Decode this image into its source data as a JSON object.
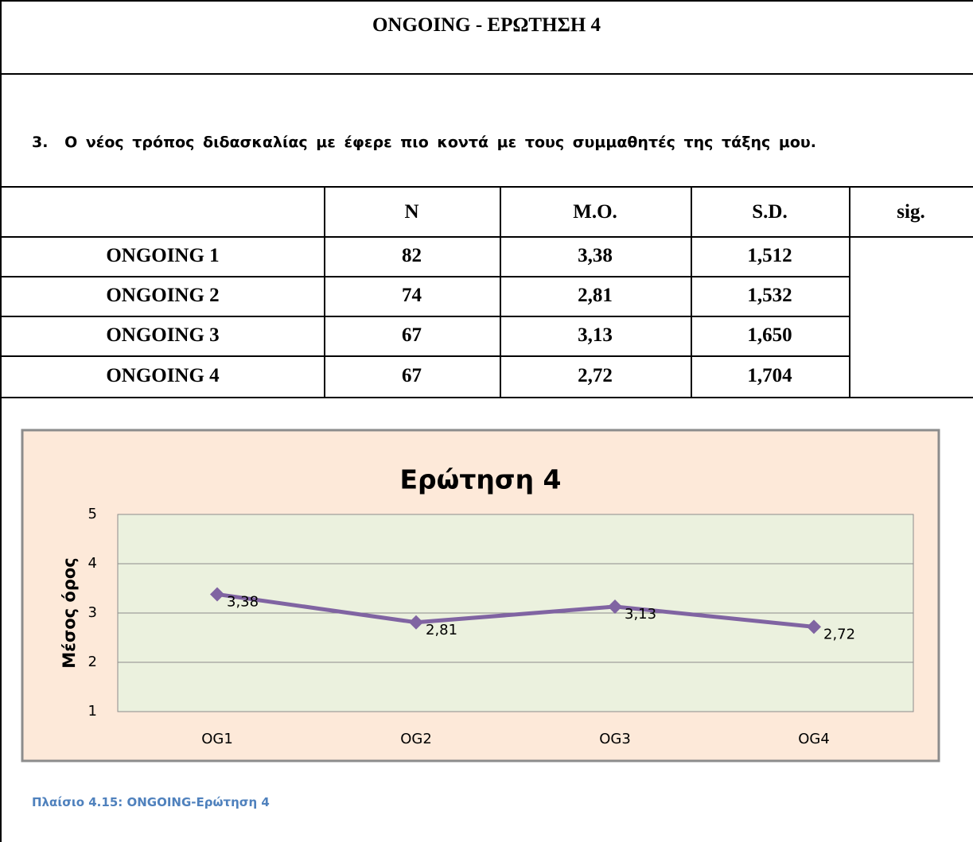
{
  "header": {
    "title": "ONGOING - ΕΡΩΤΗΣΗ 4"
  },
  "question": {
    "number": "3.",
    "text": "Ο νέος τρόπος διδασκαλίας με έφερε πιο κοντά με τους συμμαθητές της τάξης μου."
  },
  "table": {
    "columns": [
      "N",
      "M.O.",
      "S.D.",
      "sig."
    ],
    "rows": [
      [
        "ONGOING 1",
        "82",
        "3,38",
        "1,512"
      ],
      [
        "ONGOING 2",
        "74",
        "2,81",
        "1,532"
      ],
      [
        "ONGOING 3",
        "67",
        "3,13",
        "1,650"
      ],
      [
        "ONGOING 4",
        "67",
        "2,72",
        "1,704"
      ]
    ]
  },
  "chart_data": {
    "type": "line",
    "title": "Ερώτηση 4",
    "y_label": "Μέσος όρος",
    "categories": [
      "OG1",
      "OG2",
      "OG3",
      "OG4"
    ],
    "values": [
      3.38,
      2.81,
      3.13,
      2.72
    ],
    "value_labels": [
      "3,38",
      "2,81",
      "3,13",
      "2,72"
    ],
    "color": "#8064a2",
    "ylim": [
      1,
      5
    ],
    "yticks": [
      1,
      2,
      3,
      4,
      5
    ],
    "grid": true
  },
  "caption": "Πλαίσιο 4.15: ONGOING-Ερώτηση 4"
}
